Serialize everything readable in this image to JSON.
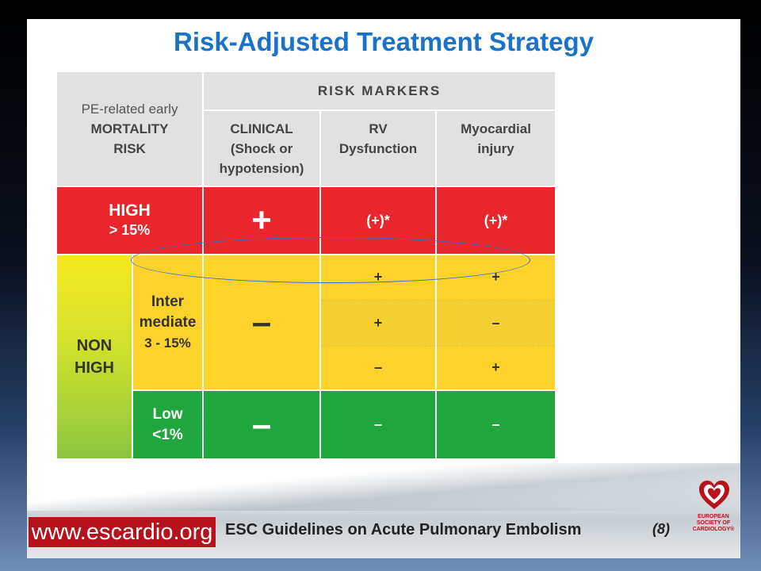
{
  "slide": {
    "title": "Risk-Adjusted Treatment Strategy"
  },
  "table": {
    "header": {
      "mortality_label": [
        "PE-related early",
        "MORTALITY",
        "RISK"
      ],
      "markers_label": "RISK MARKERS",
      "col_clinical": [
        "CLINICAL",
        "(Shock or",
        "hypotension)"
      ],
      "col_rv": [
        "RV",
        "Dysfunction"
      ],
      "col_myocardial": [
        "Myocardial",
        "injury"
      ]
    },
    "high_row": {
      "label": "HIGH",
      "pct": "> 15%",
      "clinical": "+",
      "rv": "(+)*",
      "myocardial": "(+)*"
    },
    "non_high": {
      "label": [
        "NON",
        "HIGH"
      ],
      "intermediate": {
        "label": [
          "Inter",
          "mediate",
          "3 - 15%"
        ],
        "clinical": "–",
        "rows": [
          {
            "rv": "+",
            "myocardial": "+"
          },
          {
            "rv": "+",
            "myocardial": "–"
          },
          {
            "rv": "–",
            "myocardial": "+"
          }
        ]
      },
      "low": {
        "label": [
          "Low",
          "<1%"
        ],
        "clinical": "–",
        "rv": "–",
        "myocardial": "–"
      }
    }
  },
  "footer": {
    "url": "www.escardio.org",
    "text": "ESC Guidelines on Acute Pulmonary Embolism",
    "ref": "(8)",
    "logo_text": [
      "EUROPEAN",
      "SOCIETY OF",
      "CARDIOLOGY®"
    ]
  },
  "colors": {
    "title_blue": "#1a73c8",
    "high_red": "#e9262b",
    "intermediate_yellow": "#fdd32b",
    "low_green": "#1fa63c",
    "esc_red": "#b5121b",
    "ellipse_blue": "#2f6fd0"
  }
}
